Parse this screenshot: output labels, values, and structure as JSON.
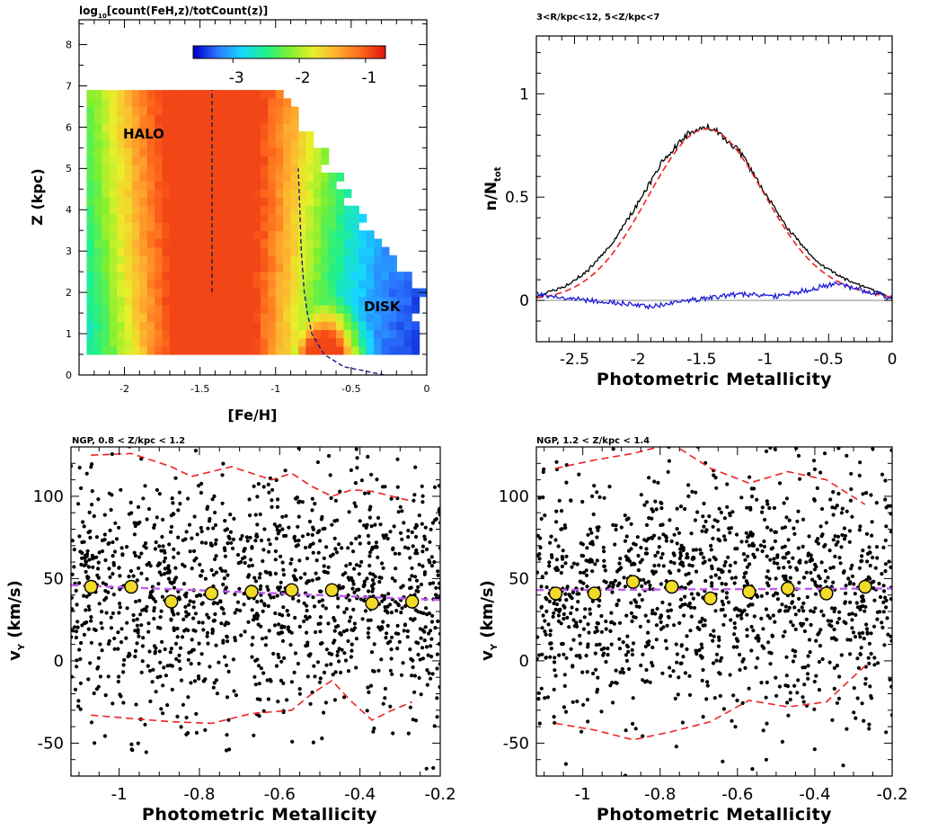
{
  "colors": {
    "halo_disk_map": [
      "#0000cc",
      "#2e7bff",
      "#14d8ff",
      "#1ef08c",
      "#7cf030",
      "#e8f02a",
      "#ffb030",
      "#ff6a1c",
      "#e31a10"
    ],
    "fit_curve": "#ee2222",
    "histogram": "#000000",
    "residual": "#1a1ad8",
    "mean_points": "#f2da28",
    "mean_fit": "#c05cf0",
    "scatter_points": "#000000"
  },
  "chart_data": [
    {
      "type": "heatmap",
      "title_prefix": "log",
      "title_sub": "10",
      "title_rest": "[count(FeH,z)/totCount(z)]",
      "xlabel": "[Fe/H]",
      "ylabel": "Z (kpc)",
      "xlim": [
        -2.3,
        0
      ],
      "ylim": [
        0,
        8.6
      ],
      "xticks": [
        "-2",
        "-1.5",
        "-1",
        "-0.5",
        "0"
      ],
      "yticks": [
        "0",
        "1",
        "2",
        "3",
        "4",
        "5",
        "6",
        "7",
        "8"
      ],
      "colorbar": {
        "range": [
          -3.6,
          -0.7
        ],
        "ticks": [
          "-3",
          "-2",
          "-1"
        ]
      },
      "cell_size": {
        "feh": 0.05,
        "z": 0.2
      },
      "annotations": [
        "HALO",
        "DISK"
      ],
      "halo_mean_feh": -1.42,
      "halo_line_z": [
        2.0,
        6.9
      ],
      "disk_line": {
        "z": [
          0,
          0.2,
          0.5,
          1,
          1.5,
          2,
          2.5,
          3,
          4,
          5
        ],
        "feh": [
          -0.28,
          -0.55,
          -0.68,
          -0.76,
          -0.79,
          -0.81,
          -0.82,
          -0.83,
          -0.84,
          -0.85
        ]
      }
    },
    {
      "type": "line",
      "title": "3<R/kpc<12, 5<Z/kpc<7",
      "xlabel": "Photometric Metallicity",
      "ylabel_main": "n/N",
      "ylabel_sub": "tot",
      "xlim": [
        -2.8,
        0
      ],
      "ylim": [
        -0.2,
        1.28
      ],
      "xticks": [
        "-2.5",
        "-2",
        "-1.5",
        "-1",
        "-0.5",
        "0"
      ],
      "yticks": [
        "0",
        "0.5",
        "1"
      ],
      "series": [
        {
          "role": "gaussian_fit",
          "mean": -1.46,
          "sigma": 0.46,
          "amplitude": 0.83
        },
        {
          "role": "histogram",
          "x": [
            -2.8,
            -2.6,
            -2.4,
            -2.2,
            -2.0,
            -1.8,
            -1.6,
            -1.5,
            -1.4,
            -1.2,
            -1.0,
            -0.8,
            -0.6,
            -0.4,
            -0.2,
            0.0
          ],
          "y": [
            0.02,
            0.06,
            0.14,
            0.28,
            0.47,
            0.68,
            0.81,
            0.84,
            0.83,
            0.72,
            0.52,
            0.33,
            0.19,
            0.11,
            0.06,
            0.01
          ]
        },
        {
          "role": "residual",
          "x": [
            -2.8,
            -2.4,
            -2.0,
            -1.9,
            -1.6,
            -1.2,
            -0.9,
            -0.6,
            -0.45,
            -0.3,
            -0.1,
            0.0
          ],
          "y": [
            0.03,
            0.0,
            -0.02,
            -0.03,
            0.0,
            0.03,
            0.02,
            0.06,
            0.08,
            0.06,
            0.03,
            0.01
          ]
        }
      ]
    },
    {
      "type": "scatter",
      "title": "NGP, 0.8 < Z/kpc < 1.2",
      "xlabel": "Photometric Metallicity",
      "ylabel_main": "v",
      "ylabel_sub": "Y",
      "ylabel_unit": " (km/s)",
      "xlim": [
        -1.12,
        -0.2
      ],
      "ylim": [
        -70,
        130
      ],
      "xticks": [
        "-1",
        "-0.8",
        "-0.6",
        "-0.4",
        "-0.2"
      ],
      "yticks": [
        "-50",
        "0",
        "50",
        "100"
      ],
      "n_points": 1300,
      "seed": 11,
      "means": {
        "x": [
          -1.07,
          -0.97,
          -0.87,
          -0.77,
          -0.67,
          -0.57,
          -0.47,
          -0.37,
          -0.27
        ],
        "y": [
          45,
          45,
          36,
          41,
          42,
          43,
          43,
          35,
          36
        ]
      },
      "mean_fit": {
        "x": [
          -1.12,
          -0.2
        ],
        "y": [
          46,
          37
        ]
      },
      "upper_envelope": {
        "x": [
          -1.07,
          -0.97,
          -0.87,
          -0.82,
          -0.72,
          -0.62,
          -0.57,
          -0.52,
          -0.47,
          -0.42,
          -0.37,
          -0.27
        ],
        "y": [
          125,
          126,
          118,
          112,
          118,
          110,
          114,
          106,
          100,
          104,
          103,
          97
        ]
      },
      "lower_envelope": {
        "x": [
          -1.07,
          -0.97,
          -0.87,
          -0.77,
          -0.67,
          -0.57,
          -0.52,
          -0.47,
          -0.42,
          -0.37,
          -0.32,
          -0.27
        ],
        "y": [
          -33,
          -35,
          -37,
          -38,
          -32,
          -30,
          -20,
          -12,
          -25,
          -36,
          -30,
          -25
        ]
      }
    },
    {
      "type": "scatter",
      "title": "NGP, 1.2 < Z/kpc < 1.4",
      "xlabel": "Photometric Metallicity",
      "ylabel_main": "v",
      "ylabel_sub": "Y",
      "ylabel_unit": " (km/s)",
      "xlim": [
        -1.12,
        -0.2
      ],
      "ylim": [
        -70,
        130
      ],
      "xticks": [
        "-1",
        "-0.8",
        "-0.6",
        "-0.4",
        "-0.2"
      ],
      "yticks": [
        "-50",
        "0",
        "50",
        "100"
      ],
      "n_points": 1250,
      "seed": 23,
      "means": {
        "x": [
          -1.07,
          -0.97,
          -0.87,
          -0.77,
          -0.67,
          -0.57,
          -0.47,
          -0.37,
          -0.27
        ],
        "y": [
          41,
          41,
          48,
          45,
          38,
          42,
          44,
          41,
          45
        ]
      },
      "mean_fit": {
        "x": [
          -1.12,
          -0.2
        ],
        "y": [
          43,
          44
        ]
      },
      "upper_envelope": {
        "x": [
          -1.07,
          -0.97,
          -0.87,
          -0.77,
          -0.67,
          -0.57,
          -0.47,
          -0.37,
          -0.27
        ],
        "y": [
          117,
          122,
          126,
          132,
          117,
          108,
          115,
          110,
          95
        ]
      },
      "lower_envelope": {
        "x": [
          -1.07,
          -0.97,
          -0.87,
          -0.77,
          -0.67,
          -0.57,
          -0.47,
          -0.37,
          -0.27
        ],
        "y": [
          -38,
          -42,
          -48,
          -43,
          -37,
          -24,
          -28,
          -25,
          -3
        ]
      }
    }
  ]
}
